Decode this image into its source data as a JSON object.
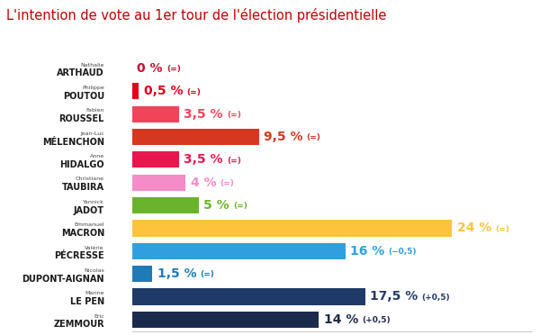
{
  "chart_data": {
    "type": "bar",
    "orientation": "horizontal",
    "title": "L'intention de vote au 1er tour de l'élection présidentielle",
    "categories": [
      "ARTHAUD",
      "POUTOU",
      "ROUSSEL",
      "MÉLENCHON",
      "HIDALGO",
      "TAUBIRA",
      "JADOT",
      "MACRON",
      "PÉCRESSE",
      "DUPONT-AIGNAN",
      "LE PEN",
      "ZEMMOUR"
    ],
    "first_names": [
      "Nathalie",
      "Philippe",
      "Fabien",
      "Jean-Luc",
      "Anne",
      "Christiane",
      "Yannick",
      "Emmanuel",
      "Valérie",
      "Nicolas",
      "Marine",
      "Éric"
    ],
    "values": [
      0,
      0.5,
      3.5,
      9.5,
      3.5,
      4,
      5,
      24,
      16,
      1.5,
      17.5,
      14
    ],
    "value_labels": [
      "0 %",
      "0,5 %",
      "3,5 %",
      "9,5 %",
      "3,5 %",
      "4 %",
      "5 %",
      "24 %",
      "16 %",
      "1,5 %",
      "17,5 %",
      "14 %"
    ],
    "changes": [
      "(=)",
      "(=)",
      "(=)",
      "(=)",
      "(=)",
      "(=)",
      "(=)",
      "(=)",
      "(−0,5)",
      "(=)",
      "(+0,5)",
      "(+0,5)"
    ],
    "colors": [
      "#c8102e",
      "#e3001b",
      "#f0445a",
      "#d4381e",
      "#e8174d",
      "#f48cc8",
      "#6ab42d",
      "#fdc43b",
      "#2f9fe0",
      "#1e7bb8",
      "#1f3a68",
      "#1c2a4d"
    ],
    "xlim": [
      0,
      30
    ],
    "data_labels": true,
    "tick_labels": false,
    "grid": false
  }
}
